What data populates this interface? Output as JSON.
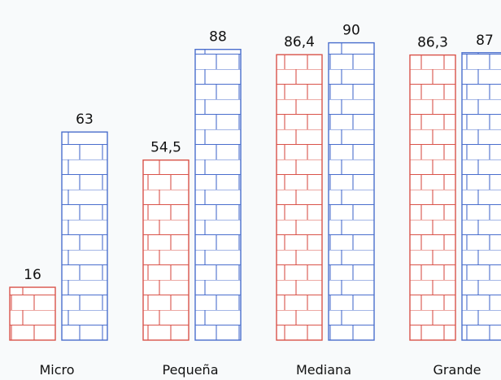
{
  "chart_data": {
    "type": "bar",
    "categories": [
      "Micro",
      "Pequeña",
      "Mediana",
      "Grande"
    ],
    "series": [
      {
        "values": [
          16,
          54.5,
          86.4,
          86.3
        ],
        "labels": [
          "16",
          "54,5",
          "86,4",
          "86,3"
        ]
      },
      {
        "values": [
          63,
          88,
          90,
          87
        ],
        "labels": [
          "63",
          "88",
          "90",
          "87"
        ]
      }
    ],
    "ylim": [
      0,
      100
    ],
    "grid": false,
    "colors": [
      "#d9534a",
      "#4a6ecd"
    ],
    "bar_fill": "#ffffff",
    "background": "#f8fafb"
  }
}
